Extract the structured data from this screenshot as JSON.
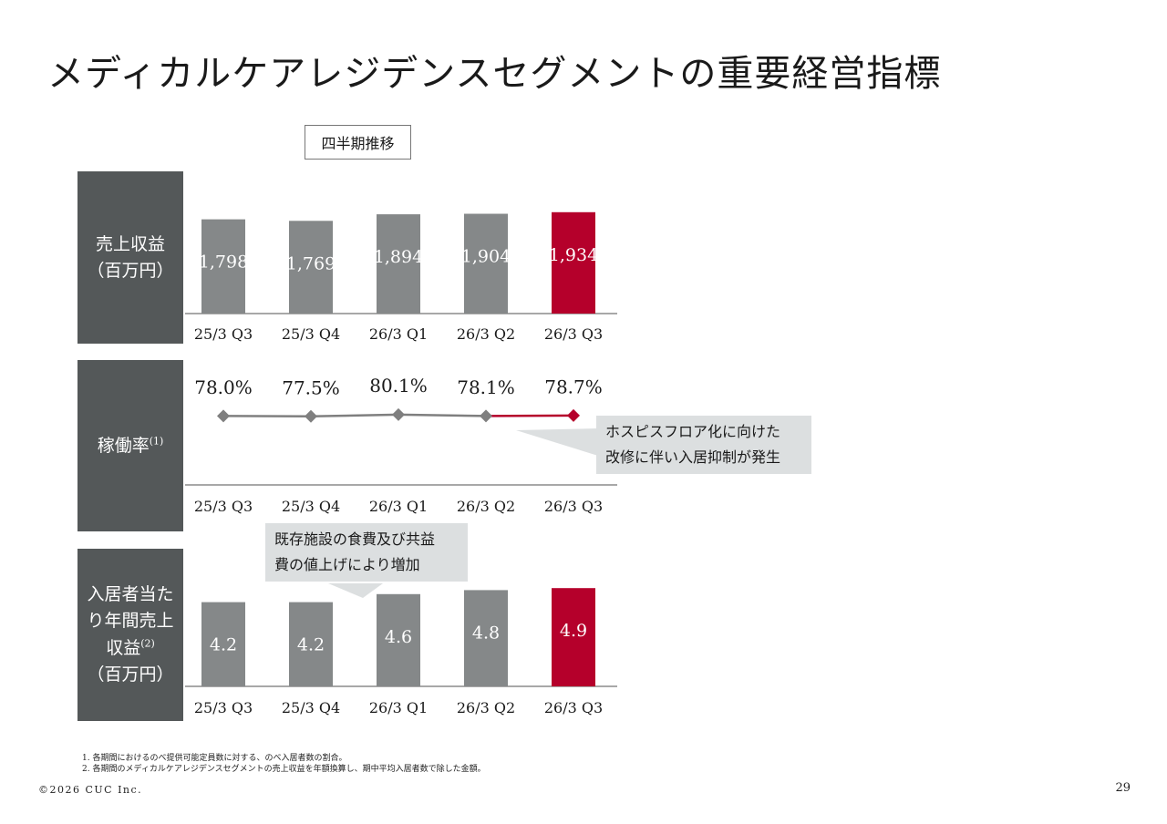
{
  "title": "メディカルケアレジデンスセグメントの重要経営指標",
  "period_label": "四半期推移",
  "labels": {
    "revenue": [
      "売上収益",
      "（百万円）"
    ],
    "occupancy": [
      "稼働率"
    ],
    "occupancy_sup": "(1)",
    "per_resident": [
      "入居者当た",
      "り年間売上",
      "収益"
    ],
    "per_resident_sup": "(2)",
    "per_resident_unit": "（百万円）"
  },
  "callouts": {
    "hospice": [
      "ホスピスフロア化に向けた",
      "改修に伴い入居抑制が発生"
    ],
    "food": [
      "既存施設の食費及び共益",
      "費の値上げにより増加"
    ]
  },
  "colors": {
    "bar": "#858889",
    "highlight": "#b5002b",
    "line": "#7f7f7f",
    "axis": "#8c8c8c",
    "label_bg": "#545859",
    "callout_bg": "#dcdfe0"
  },
  "chart_data": [
    {
      "type": "bar",
      "title": "売上収益（百万円）",
      "categories": [
        "25/3 Q3",
        "25/3 Q4",
        "26/3 Q1",
        "26/3 Q2",
        "26/3 Q3"
      ],
      "values": [
        1798,
        1769,
        1894,
        1904,
        1934
      ],
      "value_labels": [
        "1,798",
        "1,769",
        "1,894",
        "1,904",
        "1,934"
      ],
      "highlight_index": 4,
      "ylim": [
        0,
        2000
      ]
    },
    {
      "type": "line",
      "title": "稼働率",
      "categories": [
        "25/3 Q3",
        "25/3 Q4",
        "26/3 Q1",
        "26/3 Q2",
        "26/3 Q3"
      ],
      "values": [
        78.0,
        77.5,
        80.1,
        78.1,
        78.7
      ],
      "value_labels": [
        "78.0%",
        "77.5%",
        "80.1%",
        "78.1%",
        "78.7%"
      ],
      "highlight_index": 4,
      "ylim": [
        0,
        100
      ]
    },
    {
      "type": "bar",
      "title": "入居者当たり年間売上収益（百万円）",
      "categories": [
        "25/3 Q3",
        "25/3 Q4",
        "26/3 Q1",
        "26/3 Q2",
        "26/3 Q3"
      ],
      "values": [
        4.2,
        4.2,
        4.6,
        4.8,
        4.9
      ],
      "value_labels": [
        "4.2",
        "4.2",
        "4.6",
        "4.8",
        "4.9"
      ],
      "highlight_index": 4,
      "ylim": [
        0,
        5.0
      ]
    }
  ],
  "footnotes": [
    "1. 各期間におけるのべ提供可能定員数に対する、のべ入居者数の割合。",
    "2. 各期間のメディカルケアレジデンスセグメントの売上収益を年額換算し、期中平均入居者数で除した金額。"
  ],
  "copyright": "©2026 CUC Inc.",
  "page_number": "29"
}
